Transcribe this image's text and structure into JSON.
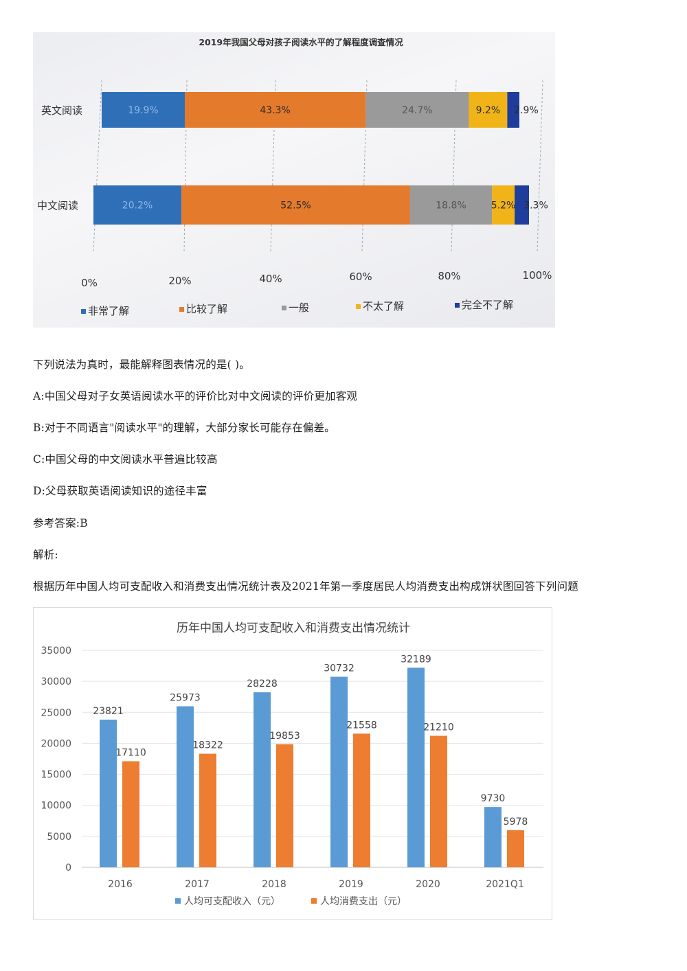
{
  "chart_data": [
    {
      "type": "bar",
      "orientation": "horizontal",
      "stacked": true,
      "title": "2019年我国父母对孩子阅读水平的了解程度调查情况",
      "categories": [
        "英文阅读",
        "中文阅读"
      ],
      "series": [
        {
          "name": "非常了解",
          "values": [
            19.9,
            20.2
          ],
          "labels": [
            "19.9%",
            "20.2%"
          ],
          "color": "#2f6fb8"
        },
        {
          "name": "比较了解",
          "values": [
            43.3,
            52.5
          ],
          "labels": [
            "43.3%",
            "52.5%"
          ],
          "color": "#e47a2c"
        },
        {
          "name": "一般",
          "values": [
            24.7,
            18.8
          ],
          "labels": [
            "24.7%",
            "18.8%"
          ],
          "color": "#9a9a9a"
        },
        {
          "name": "不太了解",
          "values": [
            9.2,
            5.2
          ],
          "labels": [
            "9.2%",
            "5.2%"
          ],
          "color": "#f0b419"
        },
        {
          "name": "完全不了解",
          "values": [
            2.9,
            3.3
          ],
          "labels": [
            "2.9%",
            "3.3%"
          ],
          "color": "#1f3d9c"
        }
      ],
      "xticks": [
        "0%",
        "20%",
        "40%",
        "60%",
        "80%",
        "100%"
      ],
      "xlim": [
        0,
        100
      ],
      "legend": "bottom"
    },
    {
      "type": "bar",
      "title": "历年中国人均可支配收入和消费支出情况统计",
      "categories": [
        "2016",
        "2017",
        "2018",
        "2019",
        "2020",
        "2021Q1"
      ],
      "series": [
        {
          "name": "人均可支配收入（元）",
          "values": [
            23821,
            25973,
            28228,
            30732,
            32189,
            9730
          ],
          "color": "#5b9bd5"
        },
        {
          "name": "人均消费支出（元）",
          "values": [
            17110,
            18322,
            19853,
            21558,
            21210,
            5978
          ],
          "color": "#ed7d31"
        }
      ],
      "yticks": [
        "35000",
        "30000",
        "25000",
        "20000",
        "15000",
        "10000",
        "5000",
        "0"
      ],
      "ylim": [
        0,
        35000
      ],
      "grid": true,
      "legend": "bottom"
    }
  ],
  "question": {
    "stem": "下列说法为真时，最能解释图表情况的是( )。",
    "options": [
      "A:中国父母对子女英语阅读水平的评价比对中文阅读的评价更加客观",
      "B:对于不同语言\"阅读水平\"的理解，大部分家长可能存在偏差。",
      "C:中国父母的中文阅读水平普遍比较高",
      "D:父母获取英语阅读知识的途径丰富"
    ],
    "answer": "参考答案:B",
    "analysis": "解析:",
    "next_intro": "根据历年中国人均可支配收入和消费支出情况统计表及2021年第一季度居民人均消费支出构成饼状图回答下列问题"
  }
}
